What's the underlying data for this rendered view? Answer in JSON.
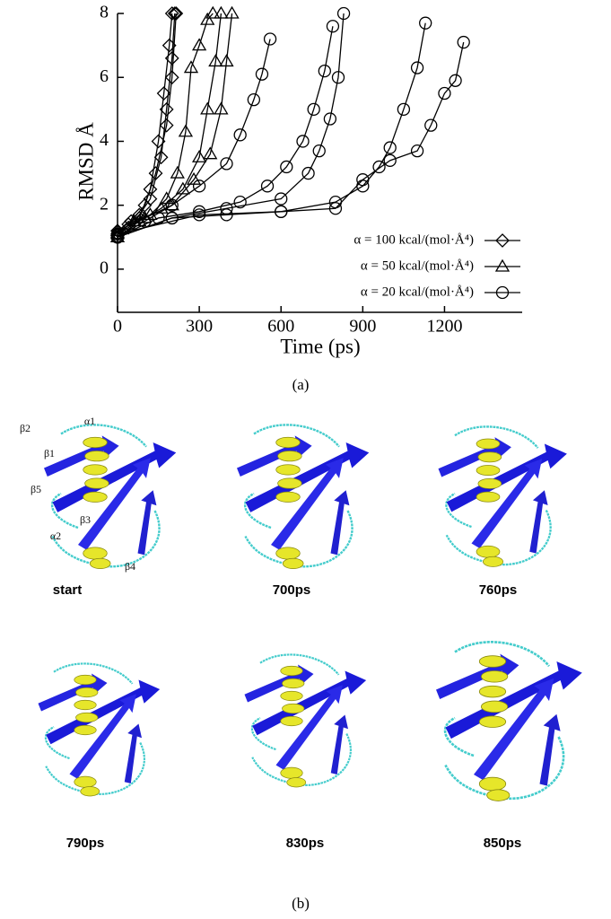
{
  "chart_data": {
    "type": "line",
    "y_label": "RMSD Å",
    "x_label": "Time (ps)",
    "xlim": [
      0,
      1485
    ],
    "ylim": [
      -1.35,
      8
    ],
    "xticks": [
      0,
      300,
      600,
      900,
      1200
    ],
    "yticks": [
      0,
      2,
      4,
      6,
      8
    ],
    "color": "#000000",
    "series": [
      {
        "name": "α = 100 kcal/(mol·Å⁴)",
        "marker": "diamond",
        "runs": [
          {
            "x": [
              0,
              40,
              80,
              120,
              150,
              170,
              190,
              200
            ],
            "values": [
              1.1,
              1.3,
              1.6,
              2.5,
              4,
              5.5,
              7,
              8
            ]
          },
          {
            "x": [
              0,
              40,
              80,
              120,
              160,
              180,
              200,
              210
            ],
            "values": [
              1.0,
              1.4,
              1.7,
              2.2,
              3.5,
              5,
              6.6,
              8
            ]
          },
          {
            "x": [
              0,
              50,
              100,
              140,
              180,
              200,
              215
            ],
            "values": [
              1.2,
              1.5,
              2,
              3,
              4.5,
              6,
              8
            ]
          }
        ]
      },
      {
        "name": "α = 50 kcal/(mol·Å⁴)",
        "marker": "triangle",
        "runs": [
          {
            "x": [
              0,
              60,
              120,
              180,
              220,
              250,
              270,
              300,
              330,
              350
            ],
            "values": [
              1.1,
              1.5,
              1.7,
              2.2,
              3,
              4.3,
              6.3,
              7,
              7.8,
              8
            ]
          },
          {
            "x": [
              0,
              80,
              160,
              240,
              300,
              330,
              360,
              380
            ],
            "values": [
              1.0,
              1.5,
              1.9,
              2.5,
              3.5,
              5,
              6.5,
              8
            ]
          },
          {
            "x": [
              0,
              100,
              200,
              280,
              340,
              380,
              400,
              420
            ],
            "values": [
              1.2,
              1.6,
              2,
              2.8,
              3.6,
              5,
              6.5,
              8
            ]
          }
        ]
      },
      {
        "name": "α = 20 kcal/(mol·Å⁴)",
        "marker": "circle",
        "runs": [
          {
            "x": [
              0,
              100,
              200,
              300,
              400,
              450,
              500,
              530,
              560
            ],
            "values": [
              1,
              1.5,
              2,
              2.6,
              3.3,
              4.2,
              5.3,
              6.1,
              7.2
            ]
          },
          {
            "x": [
              0,
              150,
              300,
              450,
              550,
              620,
              680,
              720,
              760,
              790
            ],
            "values": [
              1,
              1.6,
              1.8,
              2.1,
              2.6,
              3.2,
              4,
              5,
              6.2,
              7.6
            ]
          },
          {
            "x": [
              0,
              200,
              400,
              600,
              700,
              740,
              780,
              810,
              830
            ],
            "values": [
              1,
              1.6,
              1.9,
              2.2,
              3,
              3.7,
              4.7,
              6,
              8
            ]
          },
          {
            "x": [
              0,
              200,
              400,
              600,
              800,
              900,
              960,
              1000,
              1050,
              1100,
              1130
            ],
            "values": [
              1,
              1.6,
              1.7,
              1.8,
              2.1,
              2.6,
              3.2,
              3.8,
              5,
              6.3,
              7.7
            ]
          },
          {
            "x": [
              0,
              300,
              600,
              800,
              900,
              1000,
              1100,
              1150,
              1200,
              1240,
              1270
            ],
            "values": [
              1.1,
              1.7,
              1.8,
              1.9,
              2.8,
              3.4,
              3.7,
              4.5,
              5.5,
              5.9,
              7.1
            ]
          }
        ]
      }
    ]
  },
  "panel_a": {
    "label": "(a)"
  },
  "panel_b": {
    "label": "(b)",
    "frames": [
      {
        "label": "start"
      },
      {
        "label": "700ps"
      },
      {
        "label": "760ps"
      },
      {
        "label": "790ps"
      },
      {
        "label": "830ps"
      },
      {
        "label": "850ps"
      }
    ],
    "structure_labels": [
      "β2",
      "α1",
      "β1",
      "β5",
      "β3",
      "α2",
      "β4"
    ]
  }
}
